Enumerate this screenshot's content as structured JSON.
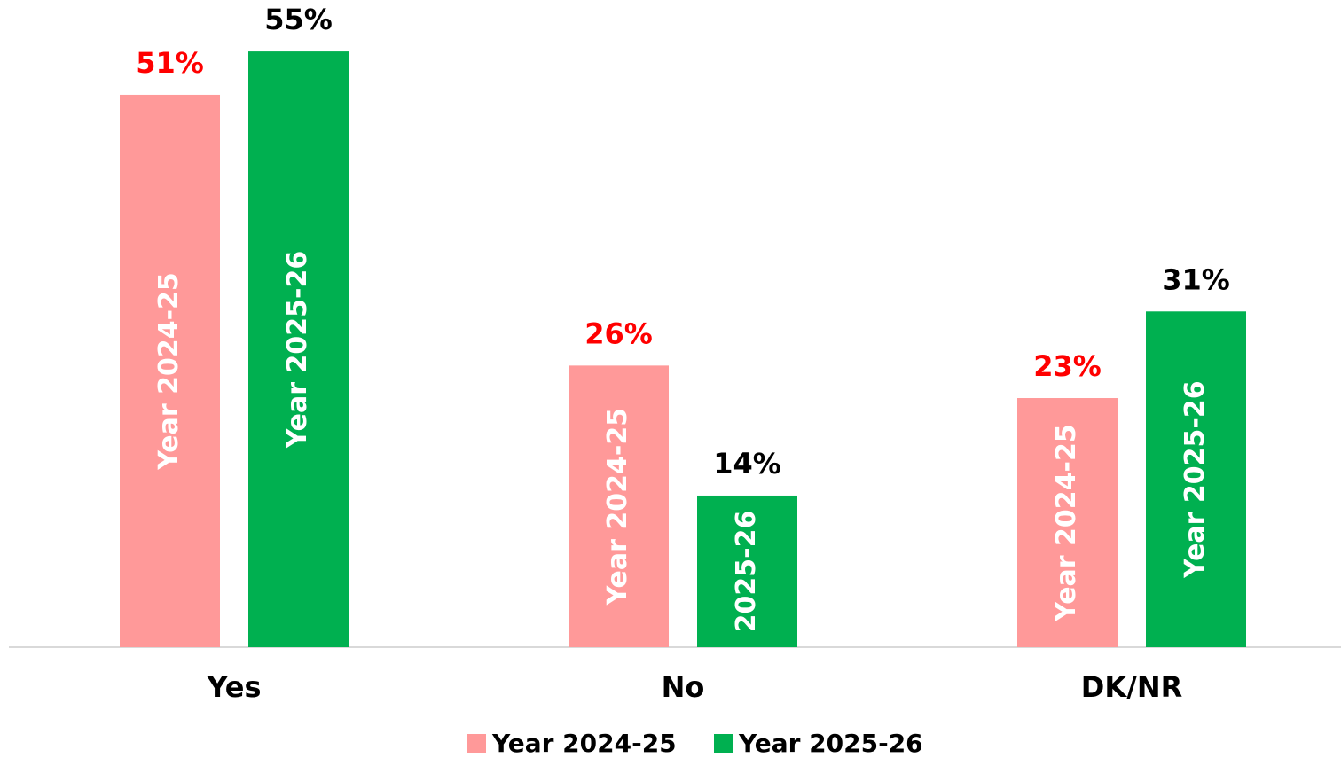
{
  "chart_data": {
    "type": "bar",
    "categories": [
      "Yes",
      "No",
      "DK/NR"
    ],
    "series": [
      {
        "name": "Year 2024-25",
        "color": "#ff9999",
        "label_color": "#ff0000",
        "values": [
          51,
          26,
          23
        ],
        "value_labels": [
          "51%",
          "26%",
          "23%"
        ],
        "bar_labels": [
          "Year 2024-25",
          "Year 2024-25",
          "Year 2024-25"
        ]
      },
      {
        "name": "Year 2025-26",
        "color": "#00b050",
        "label_color": "#000000",
        "values": [
          55,
          14,
          31
        ],
        "value_labels": [
          "55%",
          "14%",
          "31%"
        ],
        "bar_labels": [
          "Year 2025-26",
          "2025-26",
          "Year 2025-26"
        ]
      }
    ],
    "ylim": [
      0,
      60
    ],
    "legend": "bottom"
  }
}
